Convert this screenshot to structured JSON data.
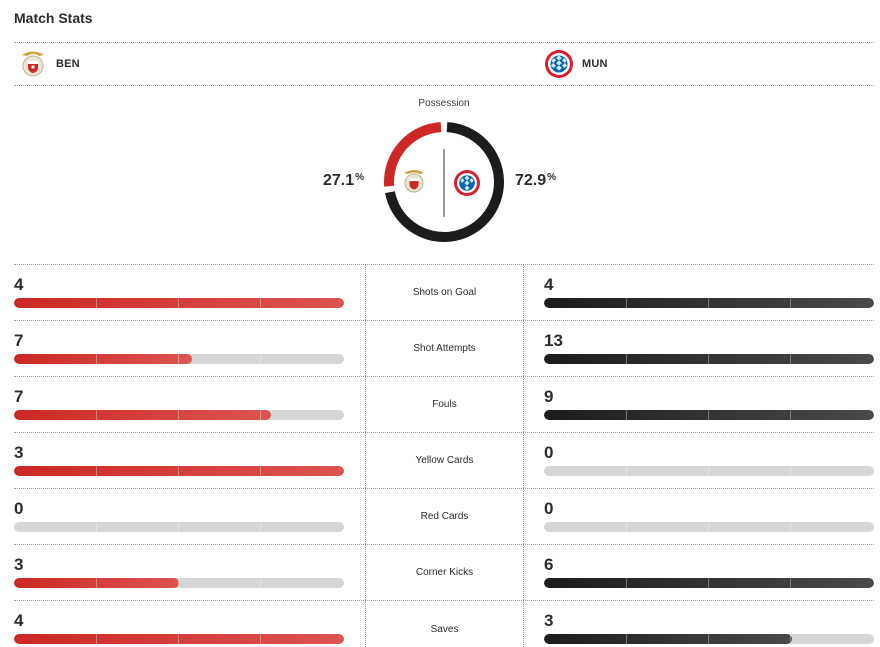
{
  "title": "Match Stats",
  "teams": {
    "home": {
      "abbr": "BEN",
      "logo_icon": "benfica-crest-icon",
      "color": "#cc2826"
    },
    "away": {
      "abbr": "MUN",
      "logo_icon": "bayern-munich-crest-icon",
      "color": "#1c1c1c"
    }
  },
  "possession": {
    "label": "Possession",
    "home_value": "27.1",
    "away_value": "72.9",
    "unit": "%",
    "home_fraction": 0.271,
    "away_fraction": 0.729
  },
  "stats": [
    {
      "label": "Shots on Goal",
      "home": "4",
      "away": "4",
      "home_fill": 1.0,
      "away_fill": 1.0
    },
    {
      "label": "Shot Attempts",
      "home": "7",
      "away": "13",
      "home_fill": 0.54,
      "away_fill": 1.0
    },
    {
      "label": "Fouls",
      "home": "7",
      "away": "9",
      "home_fill": 0.78,
      "away_fill": 1.0
    },
    {
      "label": "Yellow Cards",
      "home": "3",
      "away": "0",
      "home_fill": 1.0,
      "away_fill": 0.0
    },
    {
      "label": "Red Cards",
      "home": "0",
      "away": "0",
      "home_fill": 0.0,
      "away_fill": 0.0
    },
    {
      "label": "Corner Kicks",
      "home": "3",
      "away": "6",
      "home_fill": 0.5,
      "away_fill": 1.0
    },
    {
      "label": "Saves",
      "home": "4",
      "away": "3",
      "home_fill": 1.0,
      "away_fill": 0.75
    }
  ]
}
